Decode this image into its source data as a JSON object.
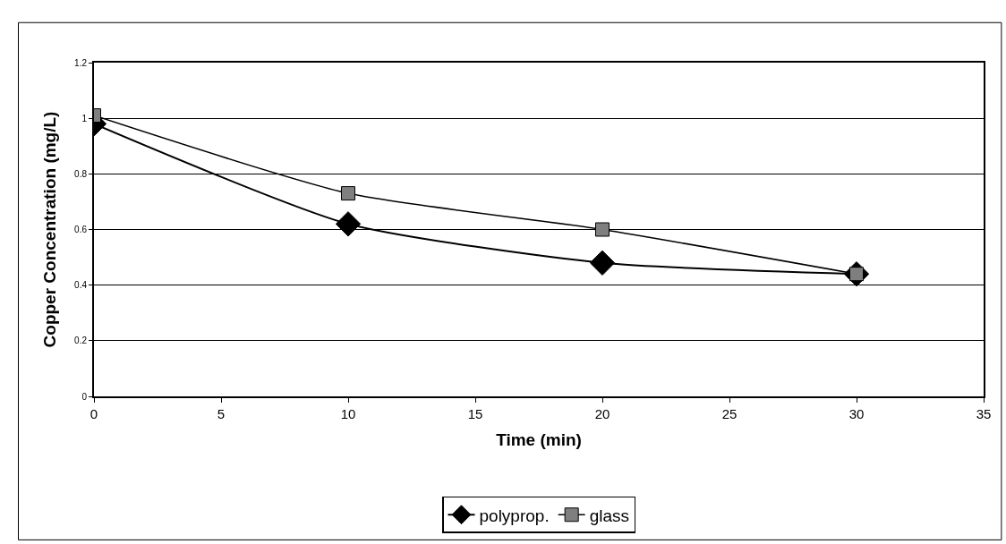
{
  "chart_data": {
    "type": "line",
    "xlabel": "Time (min)",
    "ylabel": "Copper Concentration (mg/L)",
    "x": [
      0,
      10,
      20,
      30
    ],
    "series": [
      {
        "name": "polyprop.",
        "color": "#000000",
        "marker": "diamond",
        "values": [
          0.98,
          0.62,
          0.48,
          0.44
        ]
      },
      {
        "name": "glass",
        "color": "#7f7f7f",
        "marker": "square",
        "values": [
          1.01,
          0.73,
          0.6,
          0.44
        ]
      }
    ],
    "xlim": [
      0,
      35
    ],
    "xticks": [
      0,
      5,
      10,
      15,
      20,
      25,
      30,
      35
    ],
    "ylim": [
      0,
      1.2
    ],
    "yticks": [
      0,
      0.2,
      0.4,
      0.6,
      0.8,
      1,
      1.2
    ],
    "grid": "y",
    "legend": "bottom",
    "line_style": "solid"
  }
}
